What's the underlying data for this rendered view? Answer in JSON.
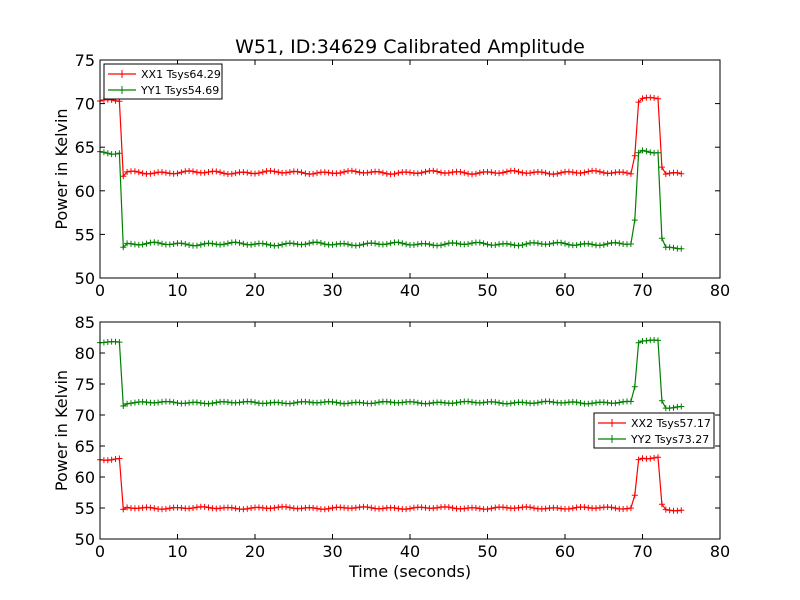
{
  "figure_title": "W51, ID:34629 Calibrated Amplitude",
  "chart_data": [
    {
      "type": "line",
      "xlabel": "",
      "ylabel": "Power in Kelvin",
      "xlim": [
        0,
        80
      ],
      "ylim": [
        50,
        75
      ],
      "xticks": [
        0,
        10,
        20,
        30,
        40,
        50,
        60,
        70,
        80
      ],
      "yticks": [
        50,
        55,
        60,
        65,
        70,
        75
      ],
      "grid": false,
      "legend_position": "top-left",
      "series": [
        {
          "name": "XX1 Tsys64.29",
          "color": "#ff0000",
          "marker": "plus",
          "levels": {
            "high_start": 70.3,
            "low": 62.1,
            "high_end": 70.6,
            "end": 61.9
          }
        },
        {
          "name": "YY1 Tsys54.69",
          "color": "#008000",
          "marker": "plus",
          "levels": {
            "high_start": 64.4,
            "low": 53.9,
            "high_end": 64.5,
            "end": 53.5
          }
        }
      ]
    },
    {
      "type": "line",
      "xlabel": "Time (seconds)",
      "ylabel": "Power in Kelvin",
      "xlim": [
        0,
        80
      ],
      "ylim": [
        50,
        85
      ],
      "xticks": [
        0,
        10,
        20,
        30,
        40,
        50,
        60,
        70,
        80
      ],
      "yticks": [
        50,
        55,
        60,
        65,
        70,
        75,
        80,
        85
      ],
      "grid": false,
      "legend_position": "center-right",
      "series": [
        {
          "name": "XX2 Tsys57.17",
          "color": "#ff0000",
          "marker": "plus",
          "levels": {
            "high_start": 62.8,
            "low": 55.0,
            "high_end": 63.1,
            "end": 54.6
          }
        },
        {
          "name": "YY2 Tsys73.27",
          "color": "#008000",
          "marker": "plus",
          "levels": {
            "high_start": 81.8,
            "low": 72.0,
            "high_end": 82.0,
            "end": 71.3
          }
        }
      ]
    }
  ]
}
